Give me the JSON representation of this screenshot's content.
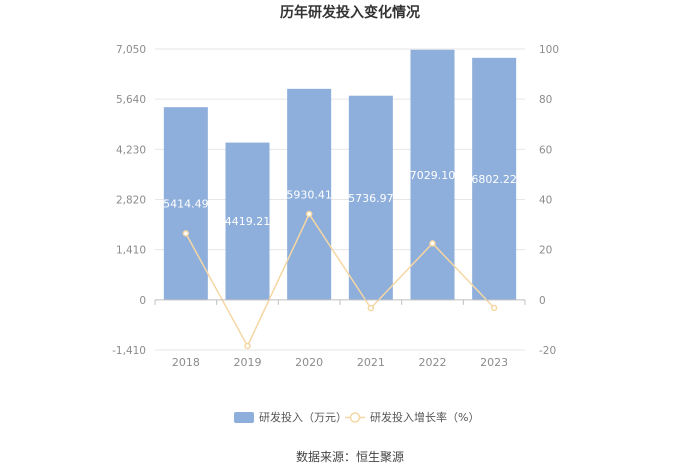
{
  "chart_data": {
    "type": "bar",
    "title": "历年研发投入变化情况",
    "categories": [
      "2018",
      "2019",
      "2020",
      "2021",
      "2022",
      "2023"
    ],
    "series": [
      {
        "name": "研发投入（万元）",
        "type": "bar",
        "axis": "left",
        "values": [
          5414.49,
          4419.21,
          5930.41,
          5736.97,
          7029.1,
          6802.22
        ],
        "labels": [
          "5414.49",
          "4419.21",
          "5930.41",
          "5736.97",
          "7029.10",
          "6802.22"
        ]
      },
      {
        "name": "研发投入增长率（%）",
        "type": "line",
        "axis": "right",
        "values": [
          26.5,
          -18.4,
          34.2,
          -3.3,
          22.5,
          -3.2
        ]
      }
    ],
    "y_left": {
      "ylim": [
        -1410,
        7050
      ],
      "ticks": [
        "7,050",
        "5,640",
        "4,230",
        "2,820",
        "1,410",
        "0",
        "-1,410"
      ]
    },
    "y_right": {
      "ylim": [
        -20,
        100
      ],
      "ticks": [
        "100",
        "80",
        "60",
        "40",
        "20",
        "0",
        "-20"
      ]
    },
    "grid": true,
    "legend_position": "bottom",
    "colors": {
      "bar": "#8eaedb",
      "line": "#f5d7a4",
      "axis": "#bfbfbf",
      "grid": "#e6e6e6"
    }
  },
  "footer": {
    "source": "数据来源：恒生聚源"
  }
}
